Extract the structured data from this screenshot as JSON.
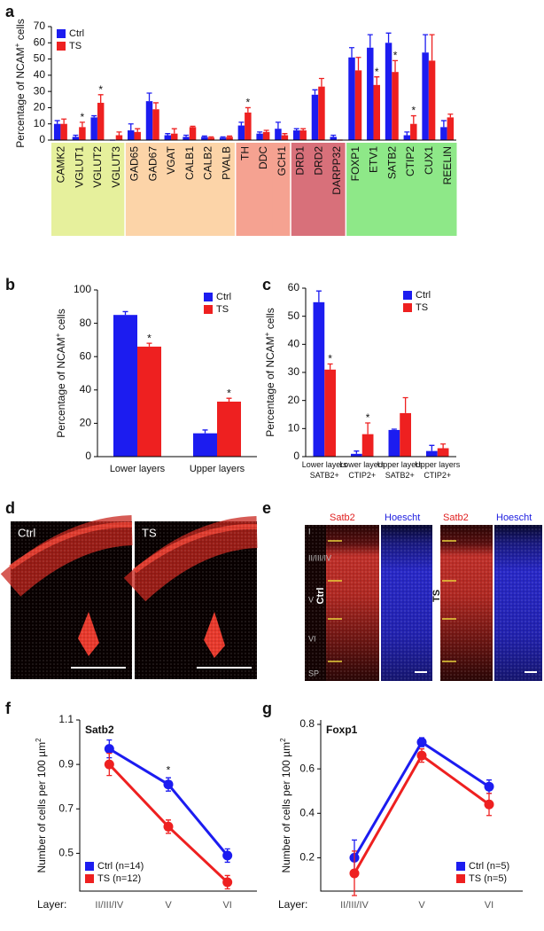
{
  "panel_labels": [
    "a",
    "b",
    "c",
    "d",
    "e",
    "f",
    "g"
  ],
  "chart_data": [
    {
      "type": "bar",
      "ylabel": {
        "text": "Percentage of NCAM",
        "sup": "+",
        "tail": " cells"
      },
      "categories": [
        "CAMK2",
        "VGLUT1",
        "VGLUT2",
        "VGLUT3",
        "GAD65",
        "GAD67",
        "VGAT",
        "CALB1",
        "CALB2",
        "PVALB",
        "TH",
        "DDC",
        "GCH1",
        "DRD1",
        "DRD2",
        "DARPP32",
        "FOXP1",
        "ETV1",
        "SATB2",
        "CTIP2",
        "CUX1",
        "REELIN"
      ],
      "category_colors": [
        "#e6f09c",
        "#e6f09c",
        "#e6f09c",
        "#e6f09c",
        "#fcd4a8",
        "#fcd4a8",
        "#fcd4a8",
        "#fcd4a8",
        "#fcd4a8",
        "#fcd4a8",
        "#f5a291",
        "#f5a291",
        "#f5a291",
        "#d8707a",
        "#d8707a",
        "#d8707a",
        "#8ee888",
        "#8ee888",
        "#8ee888",
        "#8ee888",
        "#8ee888",
        "#8ee888"
      ],
      "series": [
        {
          "name": "Ctrl",
          "color": "#1c1cf0",
          "values": [
            10,
            2,
            14,
            0,
            6,
            24,
            3,
            2,
            2,
            1.5,
            9,
            4,
            7,
            6,
            28,
            2,
            51,
            57,
            60,
            3,
            54,
            8
          ],
          "errors": [
            2,
            1,
            1,
            0,
            4,
            5,
            1,
            1,
            0.5,
            0.5,
            2,
            1,
            4,
            1,
            3,
            1,
            6,
            8,
            6,
            2,
            11,
            4
          ]
        },
        {
          "name": "TS",
          "color": "#ee2020",
          "values": [
            10,
            8,
            23,
            3,
            5,
            19,
            4,
            8,
            1.5,
            2,
            17,
            5,
            3,
            6,
            33,
            0,
            43,
            34,
            42,
            10,
            49,
            14
          ],
          "errors": [
            3,
            3,
            5,
            2,
            2,
            4,
            3,
            0.5,
            0.5,
            0.5,
            3,
            1,
            1,
            1,
            5,
            0,
            8,
            5,
            7,
            5,
            16,
            2
          ],
          "markers": [
            null,
            "*",
            "*",
            null,
            null,
            null,
            null,
            null,
            null,
            null,
            "*",
            null,
            null,
            null,
            null,
            null,
            null,
            "*",
            "*",
            "*",
            null,
            null
          ]
        }
      ],
      "ylim": [
        0,
        70
      ],
      "yticks": [
        0,
        10,
        20,
        30,
        40,
        50,
        60,
        70
      ],
      "legend": "top-left"
    },
    {
      "type": "bar",
      "ylabel": {
        "text": "Percentage  of NCAM",
        "sup": "+",
        "tail": " cells"
      },
      "categories": [
        "Lower layers",
        "Upper layers"
      ],
      "series": [
        {
          "name": "Ctrl",
          "color": "#1c1cf0",
          "values": [
            85,
            14
          ],
          "errors": [
            2,
            2
          ]
        },
        {
          "name": "TS",
          "color": "#ee2020",
          "values": [
            66,
            33
          ],
          "errors": [
            2,
            2
          ],
          "markers": [
            "*",
            "*"
          ]
        }
      ],
      "ylim": [
        0,
        100
      ],
      "yticks": [
        0,
        20,
        40,
        60,
        80,
        100
      ],
      "legend": "top-right"
    },
    {
      "type": "bar",
      "ylabel": {
        "text": "Percentage of NCAM",
        "sup": "+",
        "tail": " cells"
      },
      "categories": [
        [
          "Lower layers",
          "SATB2+"
        ],
        [
          "Lower layers",
          "CTIP2+"
        ],
        [
          "Upper layers",
          "SATB2+"
        ],
        [
          "Upper layers",
          "CTIP2+"
        ]
      ],
      "series": [
        {
          "name": "Ctrl",
          "color": "#1c1cf0",
          "values": [
            55,
            1,
            9.5,
            2
          ],
          "errors": [
            4,
            1,
            0.3,
            2
          ]
        },
        {
          "name": "TS",
          "color": "#ee2020",
          "values": [
            31,
            8,
            15.5,
            3
          ],
          "errors": [
            2,
            4,
            5.5,
            1.5
          ],
          "markers": [
            "*",
            "*",
            null,
            null
          ]
        }
      ],
      "ylim": [
        0,
        60
      ],
      "yticks": [
        0,
        10,
        20,
        30,
        40,
        50,
        60
      ],
      "legend": "top-right"
    },
    {
      "type": "line",
      "title": "Satb2",
      "ylabel": {
        "text": "Number of cells per 100 µm",
        "sup": "2",
        "tail": ""
      },
      "xprefix": "Layer:",
      "categories": [
        "II/III/IV",
        "V",
        "VI"
      ],
      "series": [
        {
          "name": "Ctrl (n=14)",
          "color": "#1c1cf0",
          "values": [
            0.97,
            0.81,
            0.49
          ],
          "errors": [
            0.04,
            0.03,
            0.03
          ],
          "markers": [
            null,
            "*",
            null
          ]
        },
        {
          "name": "TS (n=12)",
          "color": "#ee2020",
          "values": [
            0.9,
            0.62,
            0.37
          ],
          "errors": [
            0.05,
            0.03,
            0.03
          ]
        }
      ],
      "ylim": [
        0.33,
        1.1
      ],
      "yticks": [
        0.5,
        0.7,
        0.9,
        1.1
      ],
      "legend": "bottom-left"
    },
    {
      "type": "line",
      "title": "Foxp1",
      "ylabel": {
        "text": "Number of cells per 100 µm",
        "sup": "2",
        "tail": ""
      },
      "xprefix": "Layer:",
      "categories": [
        "II/III/IV",
        "V",
        "VI"
      ],
      "series": [
        {
          "name": "Ctrl (n=5)",
          "color": "#1c1cf0",
          "values": [
            0.2,
            0.72,
            0.52
          ],
          "errors": [
            0.08,
            0.02,
            0.03
          ]
        },
        {
          "name": "TS (n=5)",
          "color": "#ee2020",
          "values": [
            0.13,
            0.66,
            0.44
          ],
          "errors": [
            0.1,
            0.03,
            0.05
          ]
        }
      ],
      "ylim": [
        0.05,
        0.82
      ],
      "yticks": [
        0.2,
        0.4,
        0.6,
        0.8
      ],
      "legend": "bottom-right"
    }
  ],
  "images": {
    "d": {
      "labels": [
        "Ctrl",
        "TS"
      ]
    },
    "e": {
      "channels": [
        "Satb2",
        "Hoescht"
      ],
      "conditions": [
        "Ctrl",
        "TS"
      ],
      "layers": [
        "I",
        "II/III/IV",
        "V",
        "VI",
        "SP"
      ]
    }
  }
}
